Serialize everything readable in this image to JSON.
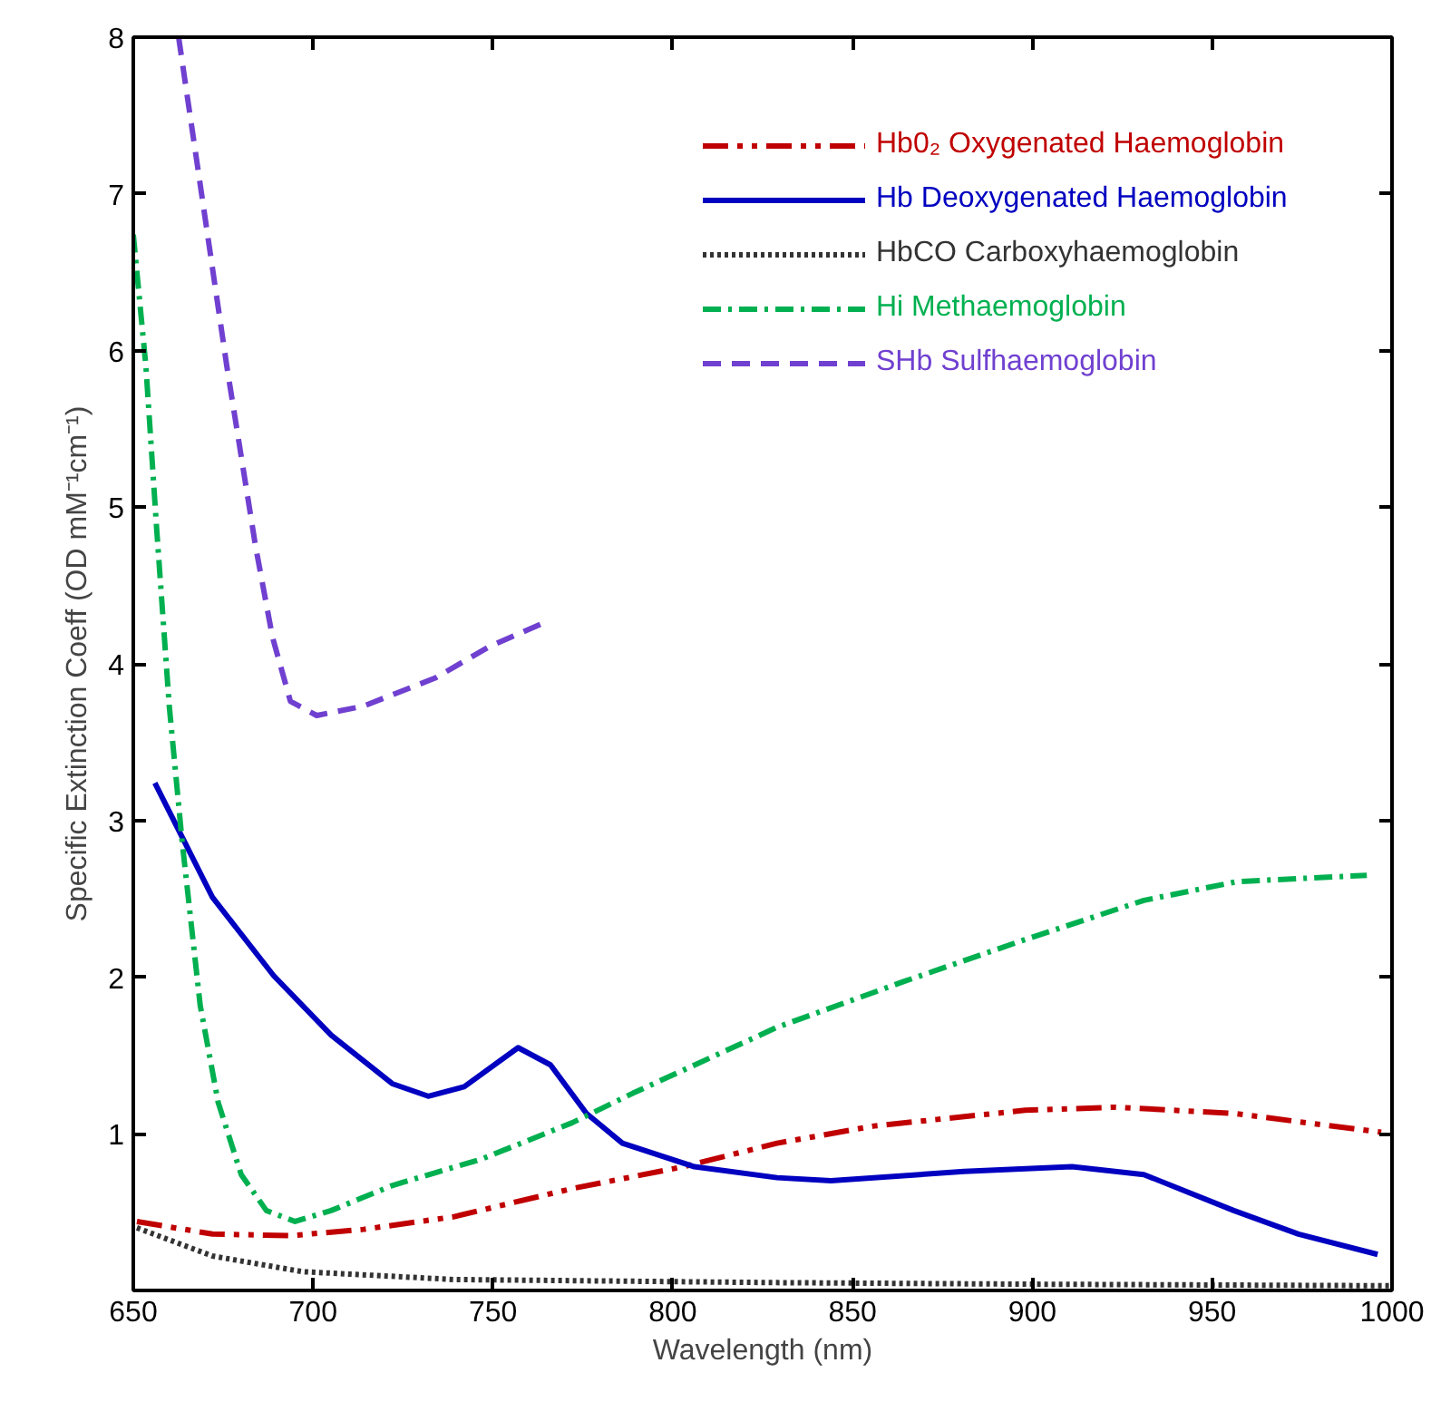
{
  "chart_data": {
    "type": "line",
    "xlabel": "Wavelength (nm)",
    "ylabel": "Specific Extinction Coeff (OD mM⁻¹cm⁻¹)",
    "xlim": [
      650,
      1000
    ],
    "ylim": [
      0,
      8
    ],
    "xticks": [
      650,
      700,
      750,
      800,
      850,
      900,
      950,
      1000
    ],
    "yticks": [
      1,
      2,
      3,
      4,
      5,
      6,
      7,
      8
    ],
    "grid": false,
    "legend": "top right",
    "marker": "none",
    "series": [
      {
        "name": "Hb0₂ Oxygenated Haemoglobin",
        "color": "#c00000",
        "line_style": "dashdotdot",
        "x": [
          651,
          672,
          694,
          714,
          739,
          772,
          803,
          829,
          856,
          898,
          923,
          956,
          997
        ],
        "values": [
          0.44,
          0.36,
          0.35,
          0.39,
          0.47,
          0.65,
          0.79,
          0.94,
          1.05,
          1.15,
          1.17,
          1.13,
          1.01
        ]
      },
      {
        "name": "Hb Deoxygenated Haemoglobin",
        "color": "#0000c0",
        "line_style": "solid",
        "x": [
          656,
          672,
          689,
          705,
          722,
          732,
          742,
          757,
          766,
          776,
          786,
          806,
          829,
          844,
          881,
          911,
          931,
          956,
          974,
          996
        ],
        "values": [
          3.24,
          2.51,
          2.01,
          1.63,
          1.32,
          1.24,
          1.3,
          1.55,
          1.44,
          1.13,
          0.94,
          0.79,
          0.72,
          0.7,
          0.76,
          0.79,
          0.74,
          0.51,
          0.36,
          0.23
        ]
      },
      {
        "name": "HbCO Carboxyhaemoglobin",
        "color": "#333333",
        "line_style": "dotted",
        "x": [
          651,
          672,
          697,
          739,
          829,
          900,
          1000
        ],
        "values": [
          0.4,
          0.22,
          0.12,
          0.07,
          0.05,
          0.04,
          0.03
        ]
      },
      {
        "name": "Hi Methaemoglobin",
        "color": "#00b050",
        "line_style": "dashdot",
        "x": [
          650,
          653.5,
          656.5,
          660,
          663.6,
          668.6,
          673.6,
          680,
          687,
          695,
          705,
          722,
          747,
          772,
          789,
          829,
          864,
          898,
          931,
          957,
          993
        ],
        "values": [
          6.74,
          5.9,
          4.86,
          3.73,
          2.86,
          1.82,
          1.2,
          0.74,
          0.51,
          0.44,
          0.51,
          0.67,
          0.84,
          1.07,
          1.26,
          1.68,
          1.97,
          2.24,
          2.49,
          2.61,
          2.65
        ]
      },
      {
        "name": "SHb Sulfhaemoglobin",
        "color": "#7040d0",
        "line_style": "dashed",
        "x": [
          662.6,
          668.6,
          676,
          684,
          688.7,
          693.7,
          701,
          714,
          734,
          749,
          764
        ],
        "values": [
          8.0,
          7.06,
          5.9,
          4.75,
          4.17,
          3.76,
          3.67,
          3.73,
          3.91,
          4.11,
          4.26
        ]
      }
    ]
  }
}
